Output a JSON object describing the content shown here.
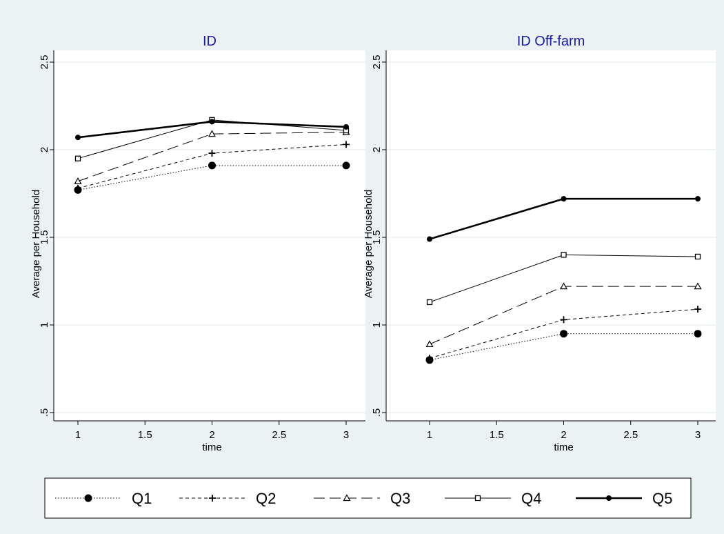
{
  "colors": {
    "background": "#eaf2f3",
    "panel": "#ffffff",
    "grid": "#eaf2f3",
    "ink": "#000000"
  },
  "chart_data": [
    {
      "type": "line",
      "title": "ID",
      "xlabel": "time",
      "ylabel": "Average per Household",
      "x": [
        1,
        2,
        3
      ],
      "xlim": [
        1,
        3
      ],
      "ylim": [
        0.5,
        2.5
      ],
      "xticks": [
        1,
        1.5,
        2,
        2.5,
        3
      ],
      "xtick_labels": [
        "1",
        "1.5",
        "2",
        "2.5",
        "3"
      ],
      "yticks": [
        0.5,
        1,
        1.5,
        2,
        2.5
      ],
      "ytick_labels": [
        ".5",
        "1",
        "1.5",
        "2",
        "2.5"
      ],
      "grid": true,
      "series": [
        {
          "name": "Q1",
          "values": [
            1.77,
            1.91,
            1.91
          ]
        },
        {
          "name": "Q2",
          "values": [
            1.78,
            1.98,
            2.03
          ]
        },
        {
          "name": "Q3",
          "values": [
            1.82,
            2.09,
            2.1
          ]
        },
        {
          "name": "Q4",
          "values": [
            1.95,
            2.17,
            2.11
          ]
        },
        {
          "name": "Q5",
          "values": [
            2.07,
            2.16,
            2.13
          ]
        }
      ]
    },
    {
      "type": "line",
      "title": "ID Off-farm",
      "xlabel": "time",
      "ylabel": "Average per Household",
      "x": [
        1,
        2,
        3
      ],
      "xlim": [
        1,
        3
      ],
      "ylim": [
        0.5,
        2.5
      ],
      "xticks": [
        1,
        1.5,
        2,
        2.5,
        3
      ],
      "xtick_labels": [
        "1",
        "1.5",
        "2",
        "2.5",
        "3"
      ],
      "yticks": [
        0.5,
        1,
        1.5,
        2,
        2.5
      ],
      "ytick_labels": [
        ".5",
        "1",
        "1.5",
        "2",
        "2.5"
      ],
      "grid": true,
      "series": [
        {
          "name": "Q1",
          "values": [
            0.8,
            0.95,
            0.95
          ]
        },
        {
          "name": "Q2",
          "values": [
            0.81,
            1.03,
            1.09
          ]
        },
        {
          "name": "Q3",
          "values": [
            0.89,
            1.22,
            1.22
          ]
        },
        {
          "name": "Q4",
          "values": [
            1.13,
            1.4,
            1.39
          ]
        },
        {
          "name": "Q5",
          "values": [
            1.49,
            1.72,
            1.72
          ]
        }
      ]
    }
  ],
  "legend": {
    "placement": "bottom",
    "items": [
      {
        "label": "Q1",
        "marker": "dot-large",
        "dash": "dotted",
        "weight": "thin"
      },
      {
        "label": "Q2",
        "marker": "plus",
        "dash": "short-dash",
        "weight": "thin"
      },
      {
        "label": "Q3",
        "marker": "triangle",
        "dash": "long-dash",
        "weight": "thin"
      },
      {
        "label": "Q4",
        "marker": "square",
        "dash": "solid",
        "weight": "thin"
      },
      {
        "label": "Q5",
        "marker": "dot",
        "dash": "solid",
        "weight": "thick"
      }
    ]
  }
}
